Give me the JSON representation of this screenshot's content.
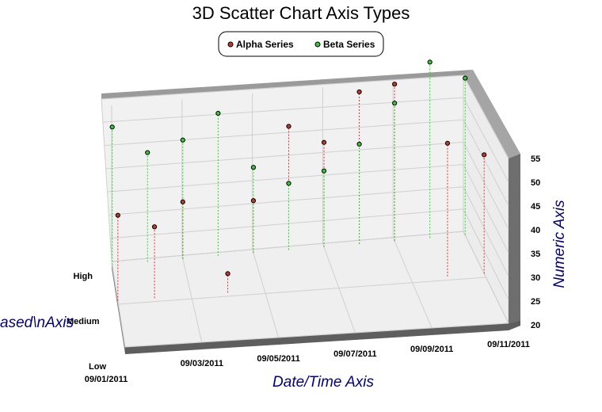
{
  "chart_data": {
    "type": "scatter",
    "title": "3D Scatter Chart Axis Types",
    "legend": {
      "placement": "top-center",
      "entries": [
        "Alpha Series",
        "Beta Series"
      ]
    },
    "x_axis": {
      "label": "Date/Time Axis",
      "type": "datetime",
      "range": [
        "09/01/2011",
        "09/11/2011"
      ],
      "tick_labels": [
        "09/01/2011",
        "09/03/2011",
        "09/05/2011",
        "09/07/2011",
        "09/09/2011",
        "09/11/2011"
      ]
    },
    "y_axis": {
      "label": "Numeric Axis",
      "type": "linear",
      "range": [
        20,
        55
      ],
      "tick_labels": [
        "20",
        "25",
        "30",
        "35",
        "40",
        "45",
        "50",
        "55"
      ]
    },
    "z_axis": {
      "label": "Category Based\\nAxis",
      "type": "category",
      "categories": [
        "Low",
        "Medium",
        "High"
      ]
    },
    "grid": true,
    "colors": {
      "alpha": "#c0392b",
      "beta": "#33cc33",
      "wall": "#eeeeee",
      "wall_edge": "#888888"
    },
    "series": [
      {
        "name": "Alpha Series",
        "points": [
          {
            "x": "09/01/2011",
            "y": 38,
            "z": "Medium"
          },
          {
            "x": "09/02/2011",
            "y": 35,
            "z": "Medium"
          },
          {
            "x": "09/03/2011",
            "y": 32,
            "z": "High"
          },
          {
            "x": "09/04/2011",
            "y": 24,
            "z": "Medium"
          },
          {
            "x": "09/05/2011",
            "y": 31,
            "z": "High"
          },
          {
            "x": "09/06/2011",
            "y": 46,
            "z": "High"
          },
          {
            "x": "09/07/2011",
            "y": 42,
            "z": "High"
          },
          {
            "x": "09/08/2011",
            "y": 52,
            "z": "High"
          },
          {
            "x": "09/09/2011",
            "y": 53,
            "z": "High"
          },
          {
            "x": "09/10/2011",
            "y": 48,
            "z": "Medium"
          },
          {
            "x": "09/11/2011",
            "y": 45,
            "z": "Medium"
          }
        ]
      },
      {
        "name": "Beta Series",
        "points": [
          {
            "x": "09/01/2011",
            "y": 49,
            "z": "High"
          },
          {
            "x": "09/02/2011",
            "y": 43,
            "z": "High"
          },
          {
            "x": "09/03/2011",
            "y": 45,
            "z": "High"
          },
          {
            "x": "09/04/2011",
            "y": 50,
            "z": "High"
          },
          {
            "x": "09/05/2011",
            "y": 38,
            "z": "High"
          },
          {
            "x": "09/06/2011",
            "y": 34,
            "z": "High"
          },
          {
            "x": "09/07/2011",
            "y": 36,
            "z": "High"
          },
          {
            "x": "09/08/2011",
            "y": 41,
            "z": "High"
          },
          {
            "x": "09/09/2011",
            "y": 49,
            "z": "High"
          },
          {
            "x": "09/10/2011",
            "y": 57,
            "z": "High"
          },
          {
            "x": "09/11/2011",
            "y": 53,
            "z": "High"
          }
        ]
      }
    ]
  }
}
